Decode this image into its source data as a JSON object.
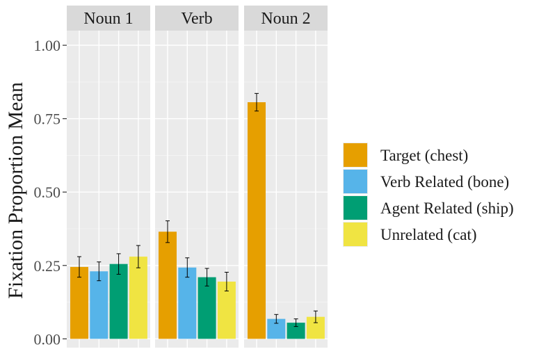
{
  "chart_data": {
    "type": "bar",
    "ylabel": "Fixation Proportion Mean",
    "xlabel": "",
    "ylim": [
      -0.03,
      1.05
    ],
    "yticks": [
      0.0,
      0.25,
      0.5,
      0.75,
      1.0
    ],
    "ytick_labels": [
      "0.00",
      "0.25",
      "0.50",
      "0.75",
      "1.00"
    ],
    "grid": true,
    "legend_position": "right",
    "series": [
      {
        "name": "Target (chest)",
        "color": "#E69F00"
      },
      {
        "name": "Verb Related (bone)",
        "color": "#56B4E9"
      },
      {
        "name": "Agent Related (ship)",
        "color": "#009E73"
      },
      {
        "name": "Unrelated (cat)",
        "color": "#F0E442"
      }
    ],
    "panels": [
      {
        "label": "Noun 1",
        "values": [
          0.245,
          0.23,
          0.255,
          0.28
        ],
        "errors": [
          0.035,
          0.032,
          0.035,
          0.038
        ]
      },
      {
        "label": "Verb",
        "values": [
          0.365,
          0.243,
          0.21,
          0.195
        ],
        "errors": [
          0.037,
          0.033,
          0.03,
          0.032
        ]
      },
      {
        "label": "Noun 2",
        "values": [
          0.806,
          0.068,
          0.055,
          0.075
        ],
        "errors": [
          0.03,
          0.015,
          0.013,
          0.02
        ]
      }
    ]
  }
}
